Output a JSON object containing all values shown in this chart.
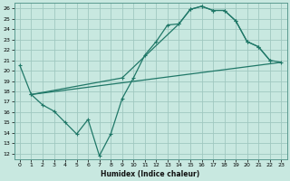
{
  "title": "",
  "xlabel": "Humidex (Indice chaleur)",
  "bg_color": "#c8e8e0",
  "grid_color": "#a0c8c0",
  "line_color": "#207868",
  "xlim": [
    -0.5,
    23.5
  ],
  "ylim": [
    11.5,
    26.5
  ],
  "xticks": [
    0,
    1,
    2,
    3,
    4,
    5,
    6,
    7,
    8,
    9,
    10,
    11,
    12,
    13,
    14,
    15,
    16,
    17,
    18,
    19,
    20,
    21,
    22,
    23
  ],
  "yticks": [
    12,
    13,
    14,
    15,
    16,
    17,
    18,
    19,
    20,
    21,
    22,
    23,
    24,
    25,
    26
  ],
  "line1_x": [
    0,
    1,
    2,
    3,
    4,
    5,
    6,
    7,
    8,
    9,
    10,
    11,
    12,
    13,
    14,
    15,
    16,
    17,
    18,
    19,
    20,
    21,
    22
  ],
  "line1_y": [
    20.5,
    17.7,
    16.7,
    16.1,
    15.0,
    13.9,
    15.3,
    11.8,
    13.9,
    17.3,
    19.3,
    21.5,
    22.8,
    24.4,
    24.5,
    25.9,
    26.2,
    25.8,
    25.8,
    24.8,
    22.8,
    22.3,
    21.0
  ],
  "line2_x": [
    1,
    23
  ],
  "line2_y": [
    17.7,
    20.8
  ],
  "line3_x": [
    1,
    9,
    14,
    15,
    16,
    17,
    18,
    19,
    20,
    21,
    22,
    23
  ],
  "line3_y": [
    17.7,
    19.3,
    24.5,
    25.9,
    26.2,
    25.8,
    25.8,
    24.8,
    22.8,
    22.3,
    21.0,
    20.8
  ]
}
